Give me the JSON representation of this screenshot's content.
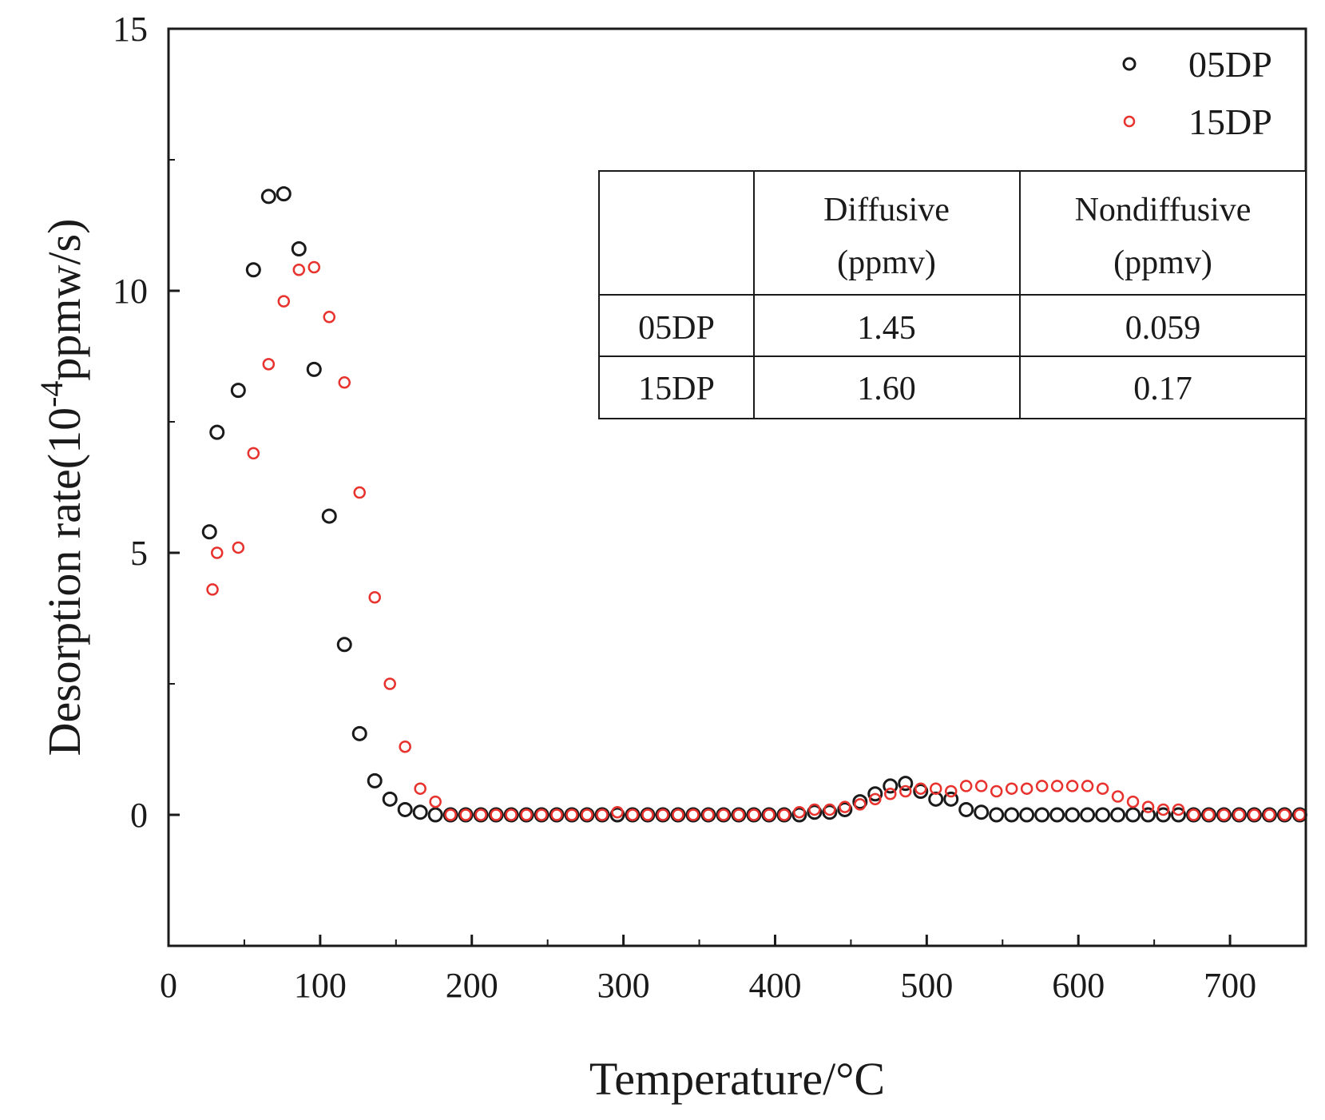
{
  "chart_data": {
    "type": "scatter",
    "title": "",
    "xlabel": "Temperature/°C",
    "ylabel_main": "Desorption rate(10",
    "ylabel_sup": "-4",
    "ylabel_unit": "ppmw/s)",
    "xlim": [
      0,
      750
    ],
    "ylim": [
      -2.5,
      15
    ],
    "x_ticks": [
      0,
      100,
      200,
      300,
      400,
      500,
      600,
      700
    ],
    "y_ticks": [
      0,
      5,
      10,
      15
    ],
    "legend_position": "top-right",
    "series": [
      {
        "name": "05DP",
        "color": "#1a1a1a",
        "marker": "open-circle",
        "points": [
          [
            27,
            5.4
          ],
          [
            32,
            7.3
          ],
          [
            46,
            8.1
          ],
          [
            56,
            10.4
          ],
          [
            66,
            11.8
          ],
          [
            76,
            11.85
          ],
          [
            86,
            10.8
          ],
          [
            96,
            8.5
          ],
          [
            106,
            5.7
          ],
          [
            116,
            3.25
          ],
          [
            126,
            1.55
          ],
          [
            136,
            0.65
          ],
          [
            146,
            0.3
          ],
          [
            156,
            0.1
          ],
          [
            166,
            0.05
          ],
          [
            176,
            0.0
          ],
          [
            186,
            0.0
          ],
          [
            196,
            0.0
          ],
          [
            206,
            0.0
          ],
          [
            216,
            0.0
          ],
          [
            226,
            0.0
          ],
          [
            236,
            0.0
          ],
          [
            246,
            0.0
          ],
          [
            256,
            0.0
          ],
          [
            266,
            0.0
          ],
          [
            276,
            0.0
          ],
          [
            286,
            0.0
          ],
          [
            296,
            0.0
          ],
          [
            306,
            0.0
          ],
          [
            316,
            0.0
          ],
          [
            326,
            0.0
          ],
          [
            336,
            0.0
          ],
          [
            346,
            0.0
          ],
          [
            356,
            0.0
          ],
          [
            366,
            0.0
          ],
          [
            376,
            0.0
          ],
          [
            386,
            0.0
          ],
          [
            396,
            0.0
          ],
          [
            406,
            0.0
          ],
          [
            416,
            0.0
          ],
          [
            426,
            0.05
          ],
          [
            436,
            0.05
          ],
          [
            446,
            0.1
          ],
          [
            456,
            0.25
          ],
          [
            466,
            0.4
          ],
          [
            476,
            0.55
          ],
          [
            486,
            0.6
          ],
          [
            496,
            0.45
          ],
          [
            506,
            0.3
          ],
          [
            516,
            0.3
          ],
          [
            526,
            0.1
          ],
          [
            536,
            0.05
          ],
          [
            546,
            0.0
          ],
          [
            556,
            0.0
          ],
          [
            566,
            0.0
          ],
          [
            576,
            0.0
          ],
          [
            586,
            0.0
          ],
          [
            596,
            0.0
          ],
          [
            606,
            0.0
          ],
          [
            616,
            0.0
          ],
          [
            626,
            0.0
          ],
          [
            636,
            0.0
          ],
          [
            646,
            0.0
          ],
          [
            656,
            0.0
          ],
          [
            666,
            0.0
          ],
          [
            676,
            0.0
          ],
          [
            686,
            0.0
          ],
          [
            696,
            0.0
          ],
          [
            706,
            0.0
          ],
          [
            716,
            0.0
          ],
          [
            726,
            0.0
          ],
          [
            736,
            0.0
          ],
          [
            746,
            0.0
          ]
        ]
      },
      {
        "name": "15DP",
        "color": "#e8322e",
        "marker": "open-circle",
        "points": [
          [
            29,
            4.3
          ],
          [
            32,
            5.0
          ],
          [
            46,
            5.1
          ],
          [
            56,
            6.9
          ],
          [
            66,
            8.6
          ],
          [
            76,
            9.8
          ],
          [
            86,
            10.4
          ],
          [
            96,
            10.45
          ],
          [
            106,
            9.5
          ],
          [
            116,
            8.25
          ],
          [
            126,
            6.15
          ],
          [
            136,
            4.15
          ],
          [
            146,
            2.5
          ],
          [
            156,
            1.3
          ],
          [
            166,
            0.5
          ],
          [
            176,
            0.25
          ],
          [
            186,
            0.0
          ],
          [
            196,
            0.0
          ],
          [
            206,
            0.0
          ],
          [
            216,
            0.0
          ],
          [
            226,
            0.0
          ],
          [
            236,
            0.0
          ],
          [
            246,
            0.0
          ],
          [
            256,
            0.0
          ],
          [
            266,
            0.0
          ],
          [
            276,
            0.0
          ],
          [
            286,
            0.0
          ],
          [
            296,
            0.05
          ],
          [
            306,
            0.0
          ],
          [
            316,
            0.0
          ],
          [
            326,
            0.0
          ],
          [
            336,
            0.0
          ],
          [
            346,
            0.0
          ],
          [
            356,
            0.0
          ],
          [
            366,
            0.0
          ],
          [
            376,
            0.0
          ],
          [
            386,
            0.0
          ],
          [
            396,
            0.0
          ],
          [
            406,
            0.0
          ],
          [
            416,
            0.05
          ],
          [
            426,
            0.1
          ],
          [
            436,
            0.1
          ],
          [
            446,
            0.15
          ],
          [
            456,
            0.2
          ],
          [
            466,
            0.3
          ],
          [
            476,
            0.4
          ],
          [
            486,
            0.45
          ],
          [
            496,
            0.5
          ],
          [
            506,
            0.5
          ],
          [
            516,
            0.45
          ],
          [
            526,
            0.55
          ],
          [
            536,
            0.55
          ],
          [
            546,
            0.45
          ],
          [
            556,
            0.5
          ],
          [
            566,
            0.5
          ],
          [
            576,
            0.55
          ],
          [
            586,
            0.55
          ],
          [
            596,
            0.55
          ],
          [
            606,
            0.55
          ],
          [
            616,
            0.5
          ],
          [
            626,
            0.35
          ],
          [
            636,
            0.25
          ],
          [
            646,
            0.15
          ],
          [
            656,
            0.1
          ],
          [
            666,
            0.1
          ],
          [
            676,
            0.0
          ],
          [
            686,
            0.0
          ],
          [
            696,
            0.0
          ],
          [
            706,
            0.0
          ],
          [
            716,
            0.0
          ],
          [
            726,
            0.0
          ],
          [
            736,
            0.0
          ],
          [
            746,
            0.0
          ]
        ]
      }
    ],
    "inset_table": {
      "headers": [
        "",
        "Diffusive",
        "Nondiffusive"
      ],
      "header_units": [
        "",
        "(ppmv)",
        "(ppmv)"
      ],
      "rows": [
        [
          "05DP",
          "1.45",
          "0.059"
        ],
        [
          "15DP",
          "1.60",
          "0.17"
        ]
      ]
    }
  }
}
